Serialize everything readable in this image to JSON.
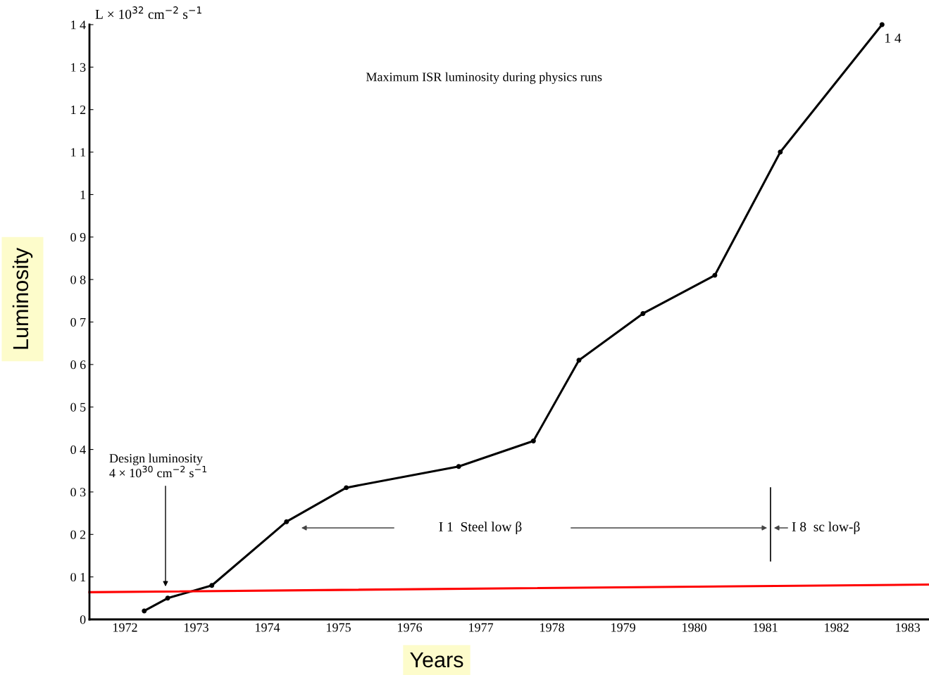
{
  "chart_data": {
    "type": "line",
    "title": "Maximum ISR luminosity during physics runs",
    "xlabel": "Years",
    "ylabel": "Luminosity",
    "series": [
      {
        "color": "#000000",
        "marker": "circle",
        "x": [
          1972.77,
          1973.1,
          1973.72,
          1974.77,
          1975.61,
          1977.19,
          1978.24,
          1978.88,
          1979.78,
          1980.79,
          1981.71,
          1983.14
        ],
        "values": [
          0.02,
          0.05,
          0.08,
          0.23,
          0.31,
          0.36,
          0.42,
          0.61,
          0.72,
          0.81,
          1.1,
          1.4
        ]
      },
      {
        "color": "#ff0000",
        "marker": "none",
        "x": [
          1972,
          1983.8
        ],
        "values": [
          0.064,
          0.082
        ]
      }
    ],
    "annotations": [
      "L × 10$^{32}$ cm$^{−2}$ s$^{−1}$",
      "Design luminosity\n4 × 10$^{30}$ cm$^{−2}$ s$^{−1}$",
      {
        "text": "1 4",
        "x": 1983.14,
        "y": 1.4
      },
      "I 1  Steel low β",
      "I 8  sc low-β"
    ],
    "xlim": [
      1972,
      1983.8
    ],
    "xticks": [
      {
        "value": 1972.5,
        "label": "1972"
      },
      {
        "value": 1973.5,
        "label": "1973"
      },
      {
        "value": 1974.5,
        "label": "1974"
      },
      {
        "value": 1975.5,
        "label": "1975"
      },
      {
        "value": 1976.5,
        "label": "1976"
      },
      {
        "value": 1977.5,
        "label": "1977"
      },
      {
        "value": 1978.5,
        "label": "1978"
      },
      {
        "value": 1979.5,
        "label": "1979"
      },
      {
        "value": 1980.5,
        "label": "1980"
      },
      {
        "value": 1981.5,
        "label": "1981"
      },
      {
        "value": 1982.5,
        "label": "1982"
      },
      {
        "value": 1983.5,
        "label": "1983"
      }
    ],
    "ylim": [
      0,
      1.4
    ],
    "yticks": [
      0,
      {
        "value": 0.1,
        "label": "0 1"
      },
      {
        "value": 0.2,
        "label": "0 2"
      },
      {
        "value": 0.3,
        "label": "0 3"
      },
      {
        "value": 0.4,
        "label": "0 4"
      },
      {
        "value": 0.5,
        "label": "0 5"
      },
      {
        "value": 0.6,
        "label": "0 6"
      },
      {
        "value": 0.7,
        "label": "0 7"
      },
      {
        "value": 0.8,
        "label": "0 8"
      },
      {
        "value": 0.9,
        "label": "0 9"
      },
      1,
      {
        "value": 1.1,
        "label": "1 1"
      },
      {
        "value": 1.2,
        "label": "1 2"
      },
      {
        "value": 1.3,
        "label": "1 3"
      },
      {
        "value": 1.4,
        "label": "1 4"
      }
    ],
    "grid": false,
    "legend": false
  }
}
